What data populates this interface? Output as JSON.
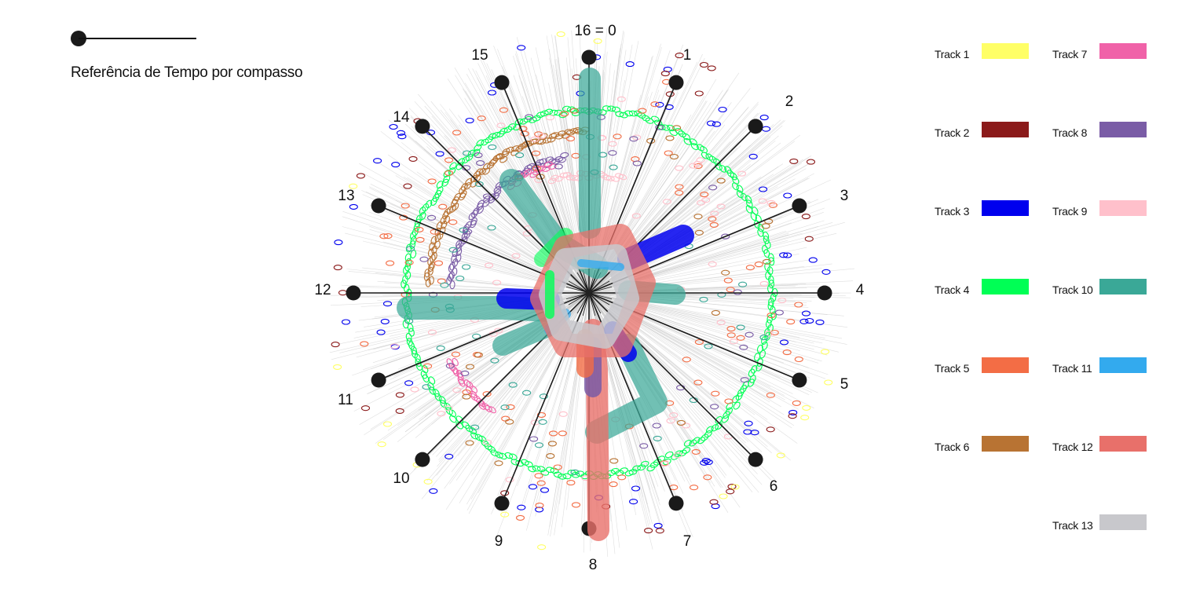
{
  "reference": {
    "label": "Referência de Tempo por compasso"
  },
  "bar_labels": [
    "16 = 0",
    "1",
    "2",
    "3",
    "4",
    "5",
    "6",
    "7",
    "8",
    "9",
    "10",
    "11",
    "12",
    "13",
    "14",
    "15"
  ],
  "legend": {
    "tracks": [
      {
        "name": "Track 1",
        "color": "#ffff66"
      },
      {
        "name": "Track 2",
        "color": "#8b1a1a"
      },
      {
        "name": "Track 3",
        "color": "#0000ee"
      },
      {
        "name": "Track 4",
        "color": "#00ff55"
      },
      {
        "name": "Track 5",
        "color": "#f36d45"
      },
      {
        "name": "Track 6",
        "color": "#b87333"
      },
      {
        "name": "Track 7",
        "color": "#f062a8"
      },
      {
        "name": "Track 8",
        "color": "#7a5ca6"
      },
      {
        "name": "Track 9",
        "color": "#ffc0cb"
      },
      {
        "name": "Track 10",
        "color": "#3aa897"
      },
      {
        "name": "Track 11",
        "color": "#33aaee"
      },
      {
        "name": "Track 12",
        "color": "#e8706a"
      },
      {
        "name": "Track 13",
        "color": "#c8c8cc"
      }
    ]
  }
}
